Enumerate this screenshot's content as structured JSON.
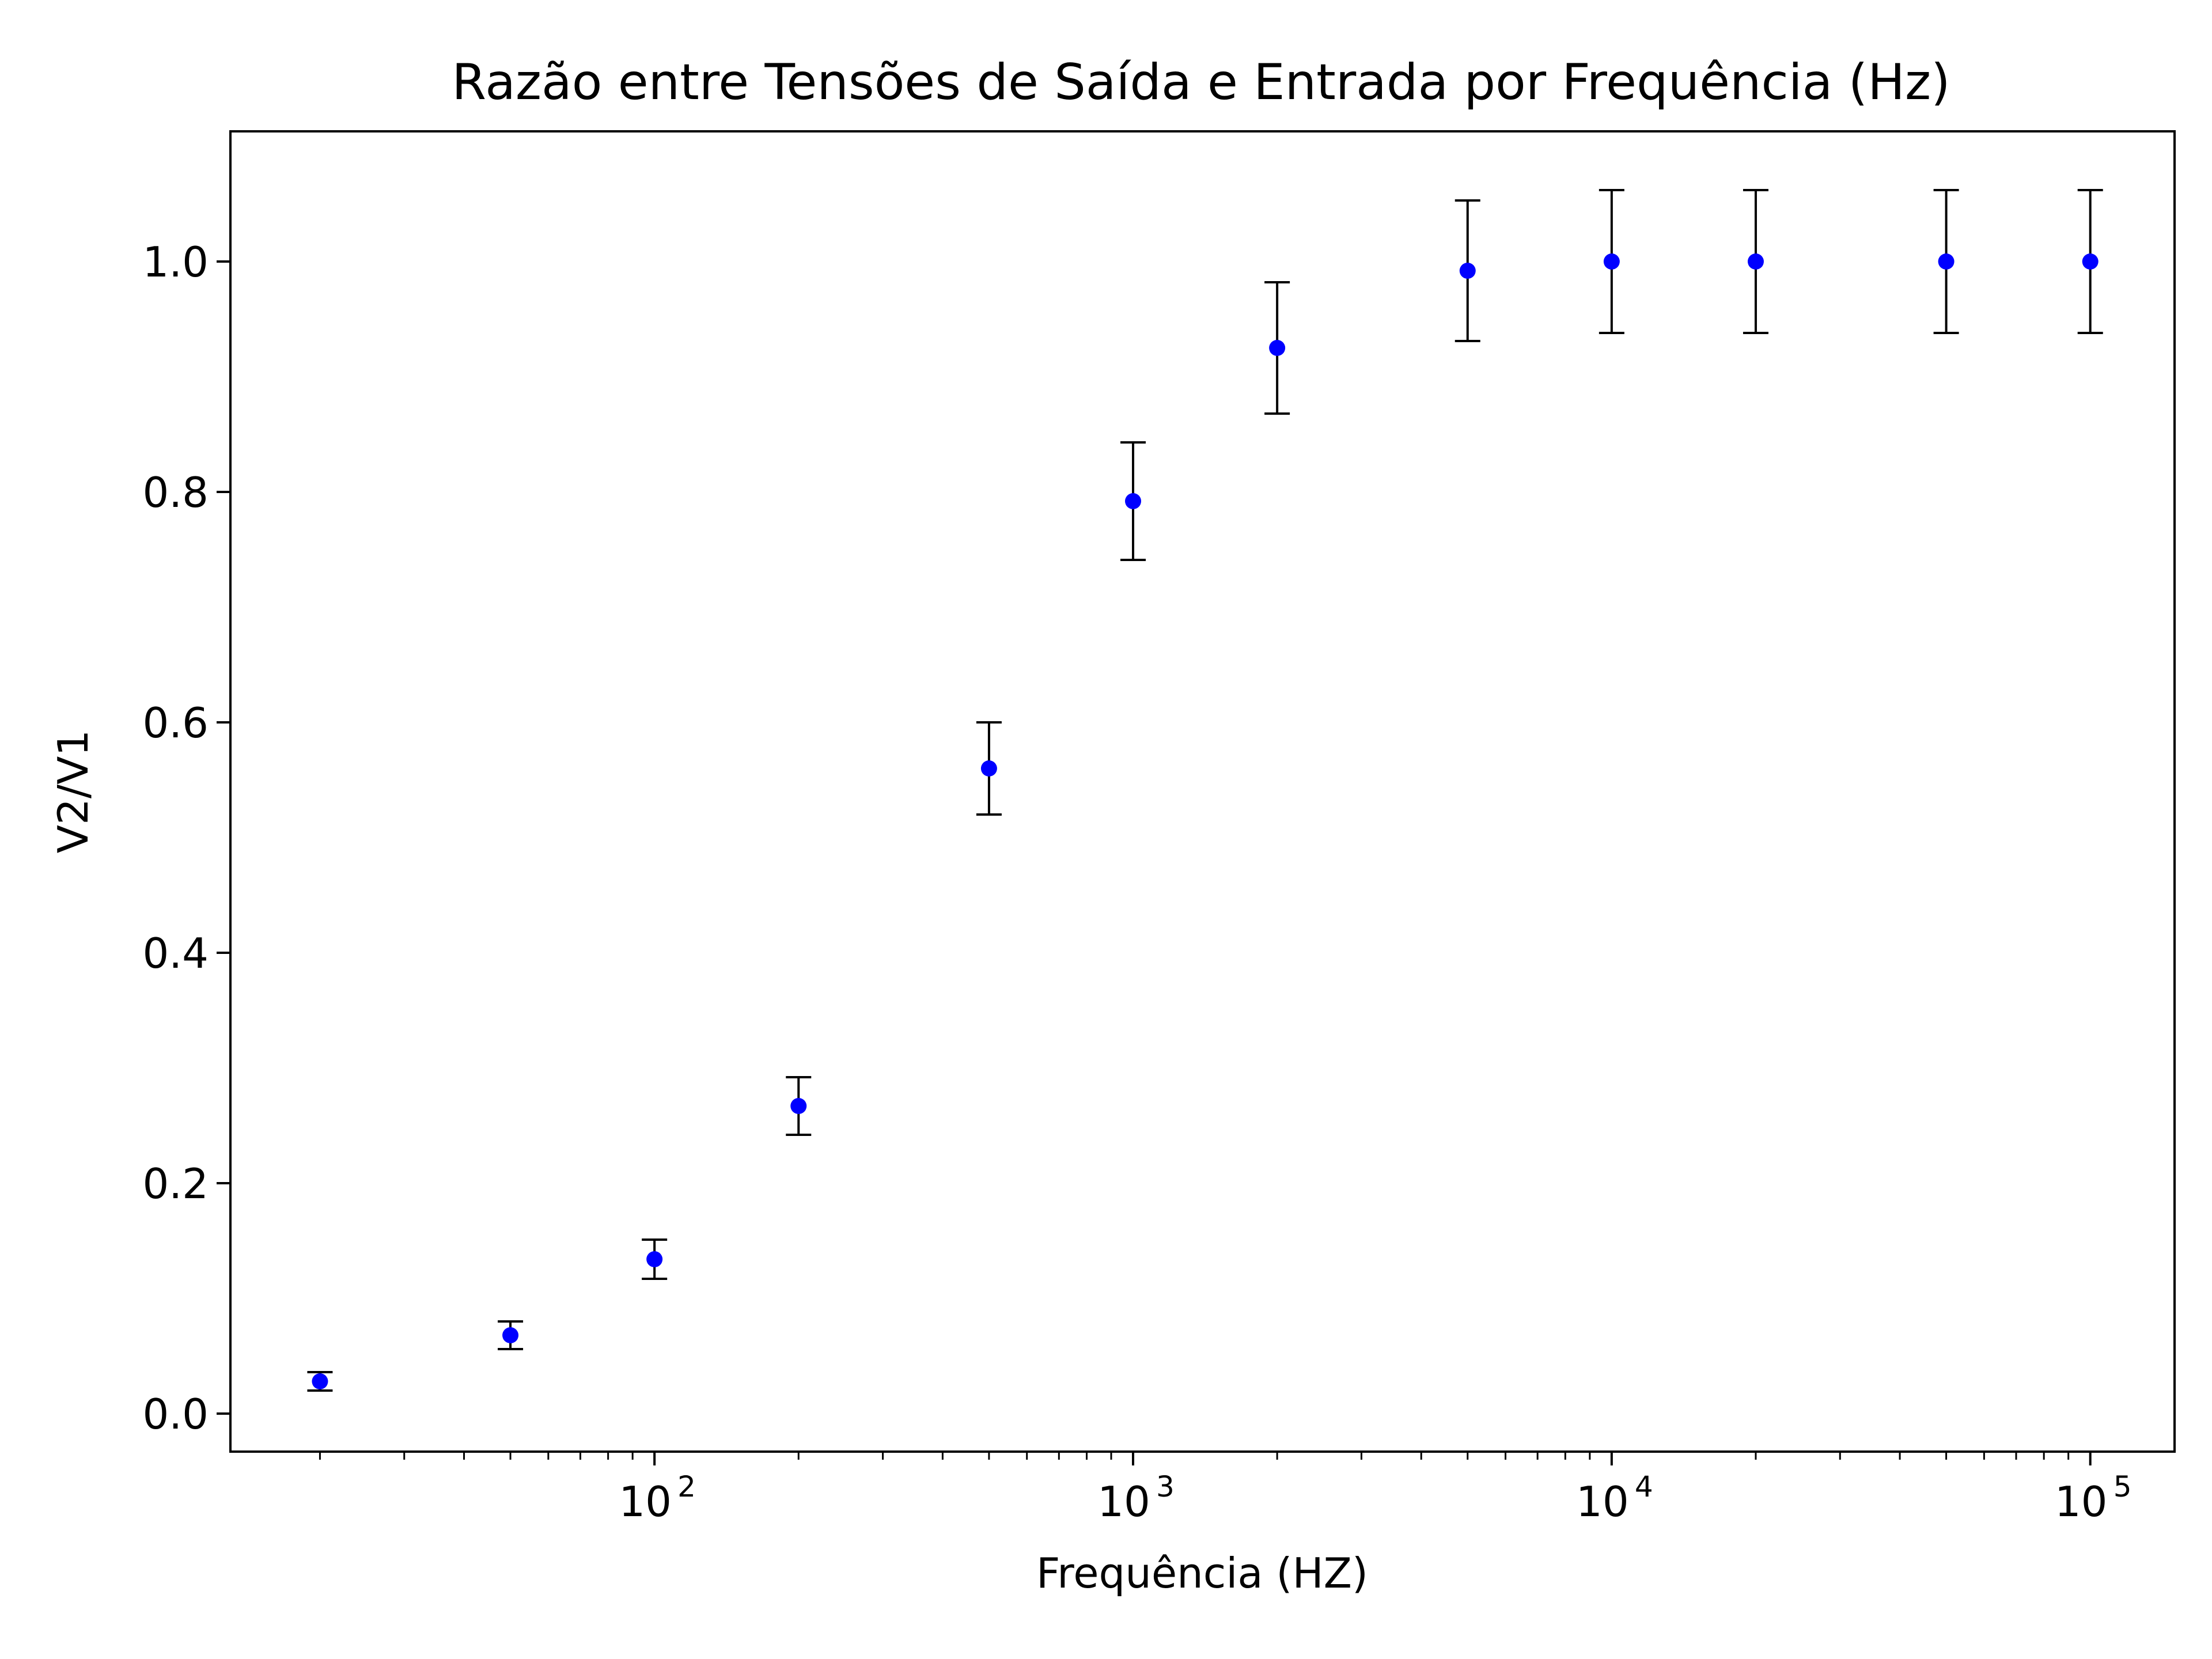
{
  "chart_data": {
    "type": "scatter",
    "title": "Razão entre Tensões de Saída e Entrada por Frequência (Hz)",
    "xlabel": "Frequência (HZ)",
    "ylabel": "V2/V1",
    "x_scale": "log",
    "xlim": [
      13,
      150000
    ],
    "ylim": [
      -0.033,
      1.113
    ],
    "x_ticks": [
      {
        "value": 100,
        "base": "10",
        "exp": "2"
      },
      {
        "value": 1000,
        "base": "10",
        "exp": "3"
      },
      {
        "value": 10000,
        "base": "10",
        "exp": "4"
      },
      {
        "value": 100000,
        "base": "10",
        "exp": "5"
      }
    ],
    "y_ticks": [
      "0.0",
      "0.2",
      "0.4",
      "0.6",
      "0.8",
      "1.0"
    ],
    "grid": false,
    "marker_color": "#0000ff",
    "errorbar_color": "#000000",
    "series": [
      {
        "x": [
          20,
          50,
          100,
          200,
          500,
          1000,
          2000,
          5000,
          10000,
          20000,
          50000,
          100000
        ],
        "y": [
          0.028,
          0.068,
          0.134,
          0.267,
          0.56,
          0.792,
          0.925,
          0.992,
          1.0,
          1.0,
          1.0,
          1.0
        ],
        "yerr": [
          0.008,
          0.012,
          0.017,
          0.025,
          0.04,
          0.051,
          0.057,
          0.061,
          0.062,
          0.062,
          0.062,
          0.062
        ]
      }
    ]
  }
}
